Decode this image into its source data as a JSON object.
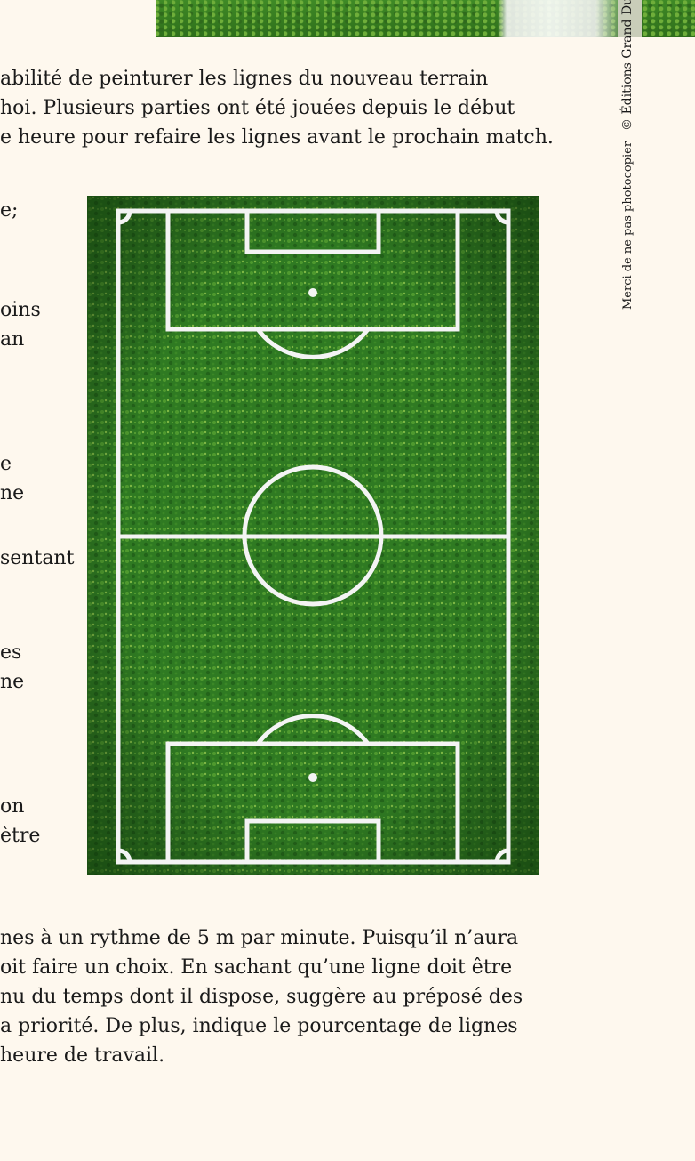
{
  "paragraph_top": {
    "lines": [
      "abilité de peinturer les lignes du nouveau terrain",
      "hoi. Plusieurs parties ont été jouées depuis le début",
      "e heure pour refaire les lignes avant le prochain match."
    ]
  },
  "left_column": {
    "fragments": [
      "e;",
      "oins",
      "an",
      "e",
      "ne",
      "sentant",
      "es",
      "ne",
      "on",
      "ètre"
    ]
  },
  "paragraph_bottom": {
    "lines": [
      "nes à un rythme de 5 m par minute. Puisqu’il n’aura",
      "oit faire un choix. En sachant qu’une ligne doit être",
      "nu du temps dont il dispose, suggère au préposé des",
      "a priorité. De plus, indique le pourcentage de lignes",
      " heure de travail."
    ]
  },
  "margin": {
    "copyright": "© Éditions Grand Duc",
    "notice": "Merci de ne pas photocopier"
  },
  "colors": {
    "page_bg": "#fef8ee",
    "grass": "#2f7a22",
    "lines": "#f4f4f4"
  }
}
